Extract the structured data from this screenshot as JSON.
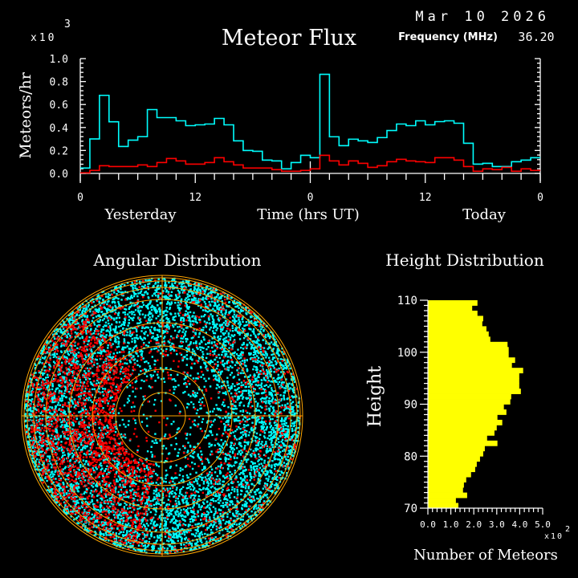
{
  "header": {
    "date": "Mar 10 2026",
    "title": "Meteor Flux",
    "frequency_label": "Frequency (MHz)",
    "frequency_value": "36.20"
  },
  "chart_data": [
    {
      "type": "line",
      "step": true,
      "title": "Meteor Flux",
      "ylabel": "Meteors/hr",
      "y_multiplier": "x10",
      "y_multiplier_exp": "3",
      "xlabel": "Time (hrs UT)",
      "x_group_labels": [
        "Yesterday",
        "Today"
      ],
      "x_ticks": [
        "0",
        "12",
        "0",
        "12",
        "0"
      ],
      "x_tick_hours": [
        0,
        12,
        24,
        36,
        48
      ],
      "y_ticks": [
        "0.0",
        "0.2",
        "0.4",
        "0.6",
        "0.8",
        "1.0"
      ],
      "xlim": [
        0,
        48
      ],
      "ylim": [
        0,
        1.0
      ],
      "grid": false,
      "series": [
        {
          "color": "#00ffff",
          "values": [
            0.047,
            0.3,
            0.68,
            0.45,
            0.235,
            0.29,
            0.32,
            0.556,
            0.486,
            0.486,
            0.458,
            0.416,
            0.423,
            0.43,
            0.479,
            0.423,
            0.284,
            0.2,
            0.193,
            0.116,
            0.109,
            0.04,
            0.095,
            0.158,
            0.137,
            0.863,
            0.319,
            0.242,
            0.298,
            0.284,
            0.27,
            0.312,
            0.374,
            0.43,
            0.416,
            0.458,
            0.423,
            0.451,
            0.458,
            0.437,
            0.263,
            0.081,
            0.088,
            0.06,
            0.06,
            0.102,
            0.116,
            0.137
          ]
        },
        {
          "color": "#ff0000",
          "values": [
            0.005,
            0.026,
            0.067,
            0.06,
            0.06,
            0.06,
            0.074,
            0.06,
            0.095,
            0.13,
            0.109,
            0.081,
            0.081,
            0.095,
            0.137,
            0.102,
            0.074,
            0.047,
            0.047,
            0.047,
            0.033,
            0.019,
            0.019,
            0.026,
            0.04,
            0.158,
            0.109,
            0.074,
            0.109,
            0.088,
            0.053,
            0.067,
            0.102,
            0.123,
            0.109,
            0.102,
            0.095,
            0.137,
            0.137,
            0.116,
            0.06,
            0.019,
            0.04,
            0.033,
            0.053,
            0.019,
            0.04,
            0.026
          ]
        }
      ]
    },
    {
      "type": "scatter",
      "polar": true,
      "title": "Angular Distribution",
      "grid": true,
      "grid_color": "#ffa500",
      "series": [
        {
          "color": "#00ffff"
        },
        {
          "color": "#ff0000"
        }
      ]
    },
    {
      "type": "bar",
      "orientation": "horizontal",
      "title": "Height Distribution",
      "ylabel": "Height",
      "xlabel": "Number of Meteors",
      "x_multiplier": "x10",
      "x_multiplier_exp": "2",
      "x_ticks": [
        "0.0",
        "1.0",
        "2.0",
        "3.0",
        "4.0",
        "5.0"
      ],
      "y_ticks": [
        "70",
        "80",
        "90",
        "100",
        "110"
      ],
      "xlim": [
        0,
        5.0
      ],
      "ylim": [
        70,
        110
      ],
      "color": "#ffff00",
      "bin_bottoms": [
        109,
        108,
        107,
        106,
        105,
        104,
        103,
        102,
        101,
        100,
        99,
        98,
        97,
        96,
        95,
        94,
        93,
        92,
        91,
        90,
        89,
        88,
        87,
        86,
        85,
        84,
        83,
        82,
        81,
        80,
        79,
        78,
        77,
        76,
        75,
        74,
        73,
        72,
        71,
        70
      ],
      "values": [
        2.16,
        1.93,
        2.16,
        2.41,
        2.37,
        2.55,
        2.65,
        2.72,
        3.47,
        3.52,
        3.52,
        3.8,
        3.66,
        4.15,
        3.98,
        3.98,
        3.98,
        4.05,
        3.63,
        3.59,
        3.31,
        3.42,
        3.03,
        3.24,
        3.0,
        2.9,
        2.58,
        3.03,
        2.48,
        2.41,
        2.27,
        2.13,
        2.06,
        1.88,
        1.67,
        1.57,
        1.53,
        1.71,
        1.22,
        1.33
      ]
    }
  ]
}
